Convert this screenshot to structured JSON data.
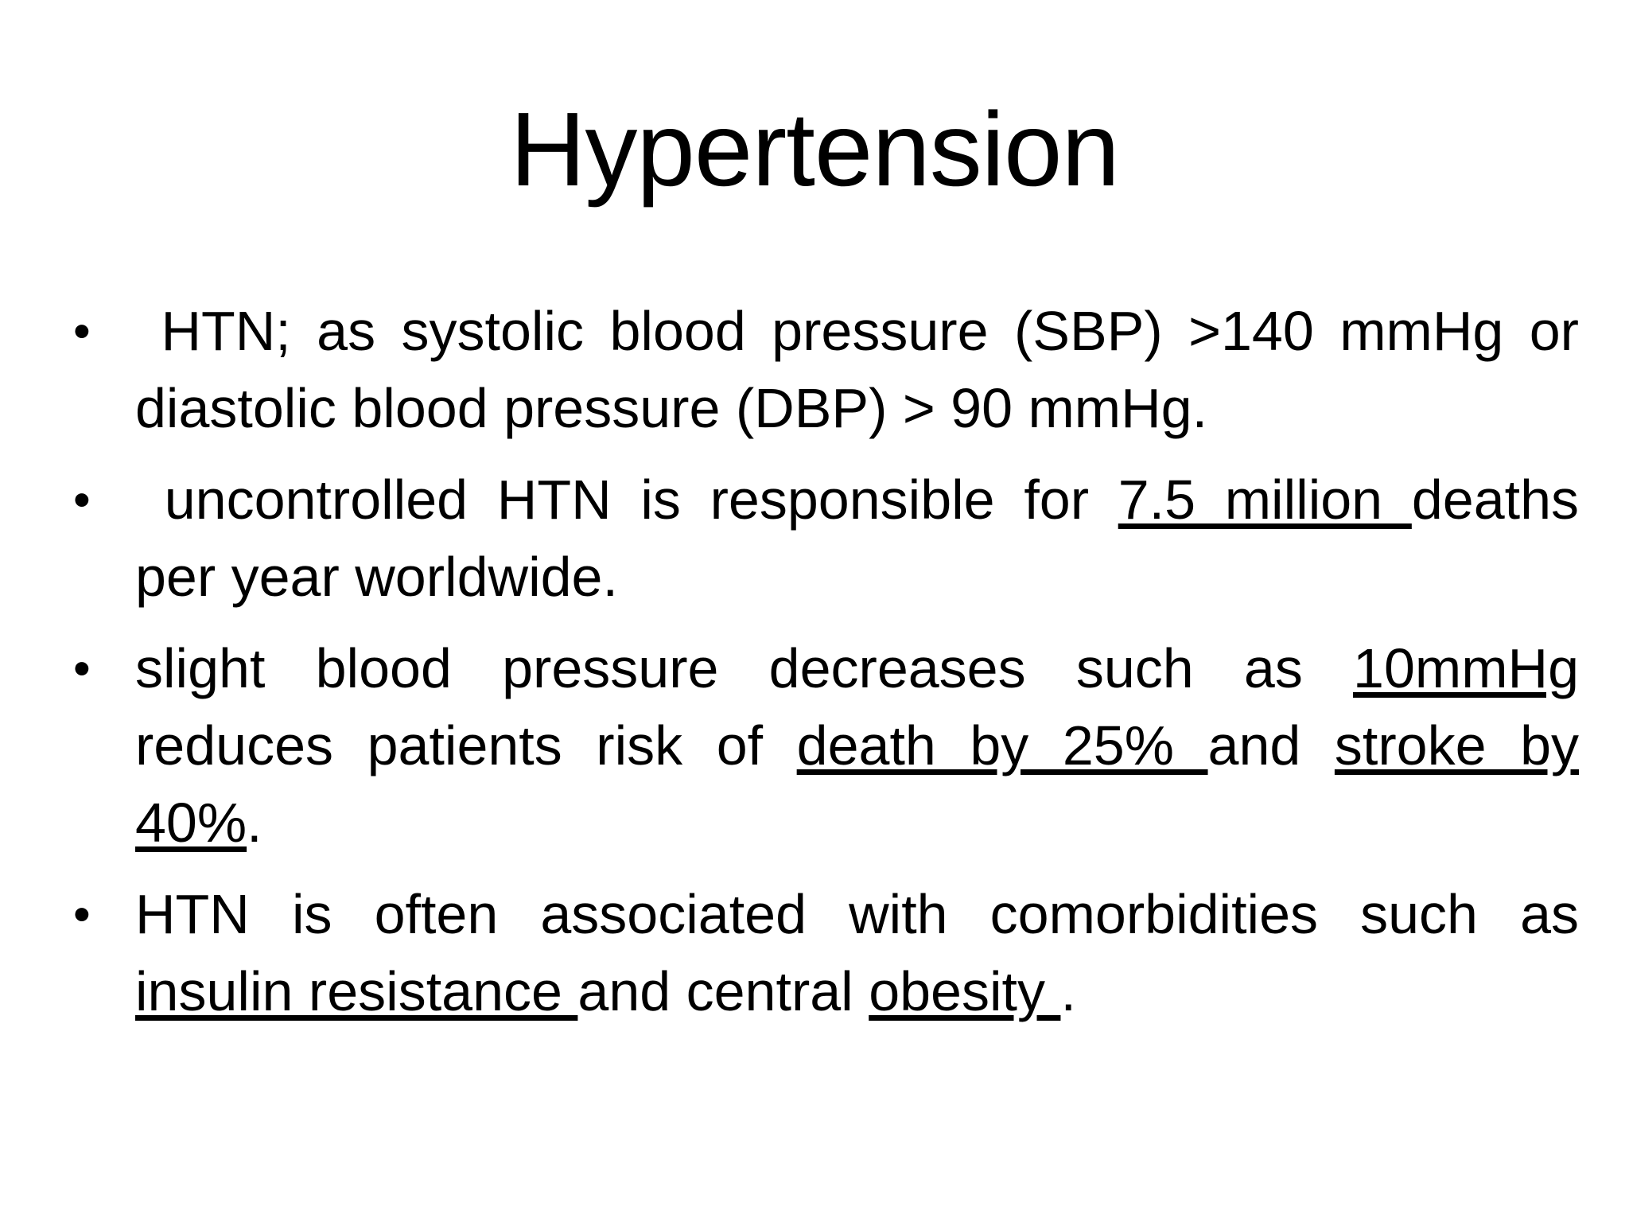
{
  "slide": {
    "title": "Hypertension",
    "background_color": "#ffffff",
    "text_color": "#000000",
    "bullet_char": "•",
    "bullets": [
      {
        "lines": [
          {
            "justify": true,
            "segments": [
              {
                "t": " HTN; as systolic blood pressure (SBP) >140 mmHg or",
                "u": false
              }
            ]
          },
          {
            "justify": false,
            "segments": [
              {
                "t": "diastolic blood pressure (DBP) > 90 mmHg.",
                "u": false
              }
            ]
          }
        ]
      },
      {
        "lines": [
          {
            "justify": true,
            "segments": [
              {
                "t": " uncontrolled HTN is responsible for ",
                "u": false
              },
              {
                "t": "7.5 million ",
                "u": true
              },
              {
                "t": "deaths",
                "u": false
              }
            ]
          },
          {
            "justify": false,
            "segments": [
              {
                "t": "per year worldwide.",
                "u": false
              }
            ]
          }
        ]
      },
      {
        "lines": [
          {
            "justify": true,
            "segments": [
              {
                "t": "slight blood pressure decreases such as ",
                "u": false
              },
              {
                "t": "10mmHg",
                "u": true
              }
            ]
          },
          {
            "justify": true,
            "segments": [
              {
                "t": "reduces patients risk of ",
                "u": false
              },
              {
                "t": "death by 25% ",
                "u": true
              },
              {
                "t": "and ",
                "u": false
              },
              {
                "t": "stroke by",
                "u": true
              }
            ]
          },
          {
            "justify": false,
            "segments": [
              {
                "t": "40%",
                "u": true
              },
              {
                "t": ".",
                "u": false
              }
            ]
          }
        ]
      },
      {
        "lines": [
          {
            "justify": true,
            "segments": [
              {
                "t": "HTN is often associated with comorbidities such as",
                "u": false
              }
            ]
          },
          {
            "justify": false,
            "segments": [
              {
                "t": "insulin resistance ",
                "u": true
              },
              {
                "t": "and central ",
                "u": false
              },
              {
                "t": "obesity ",
                "u": true
              },
              {
                "t": ".",
                "u": false
              }
            ]
          }
        ]
      }
    ]
  }
}
